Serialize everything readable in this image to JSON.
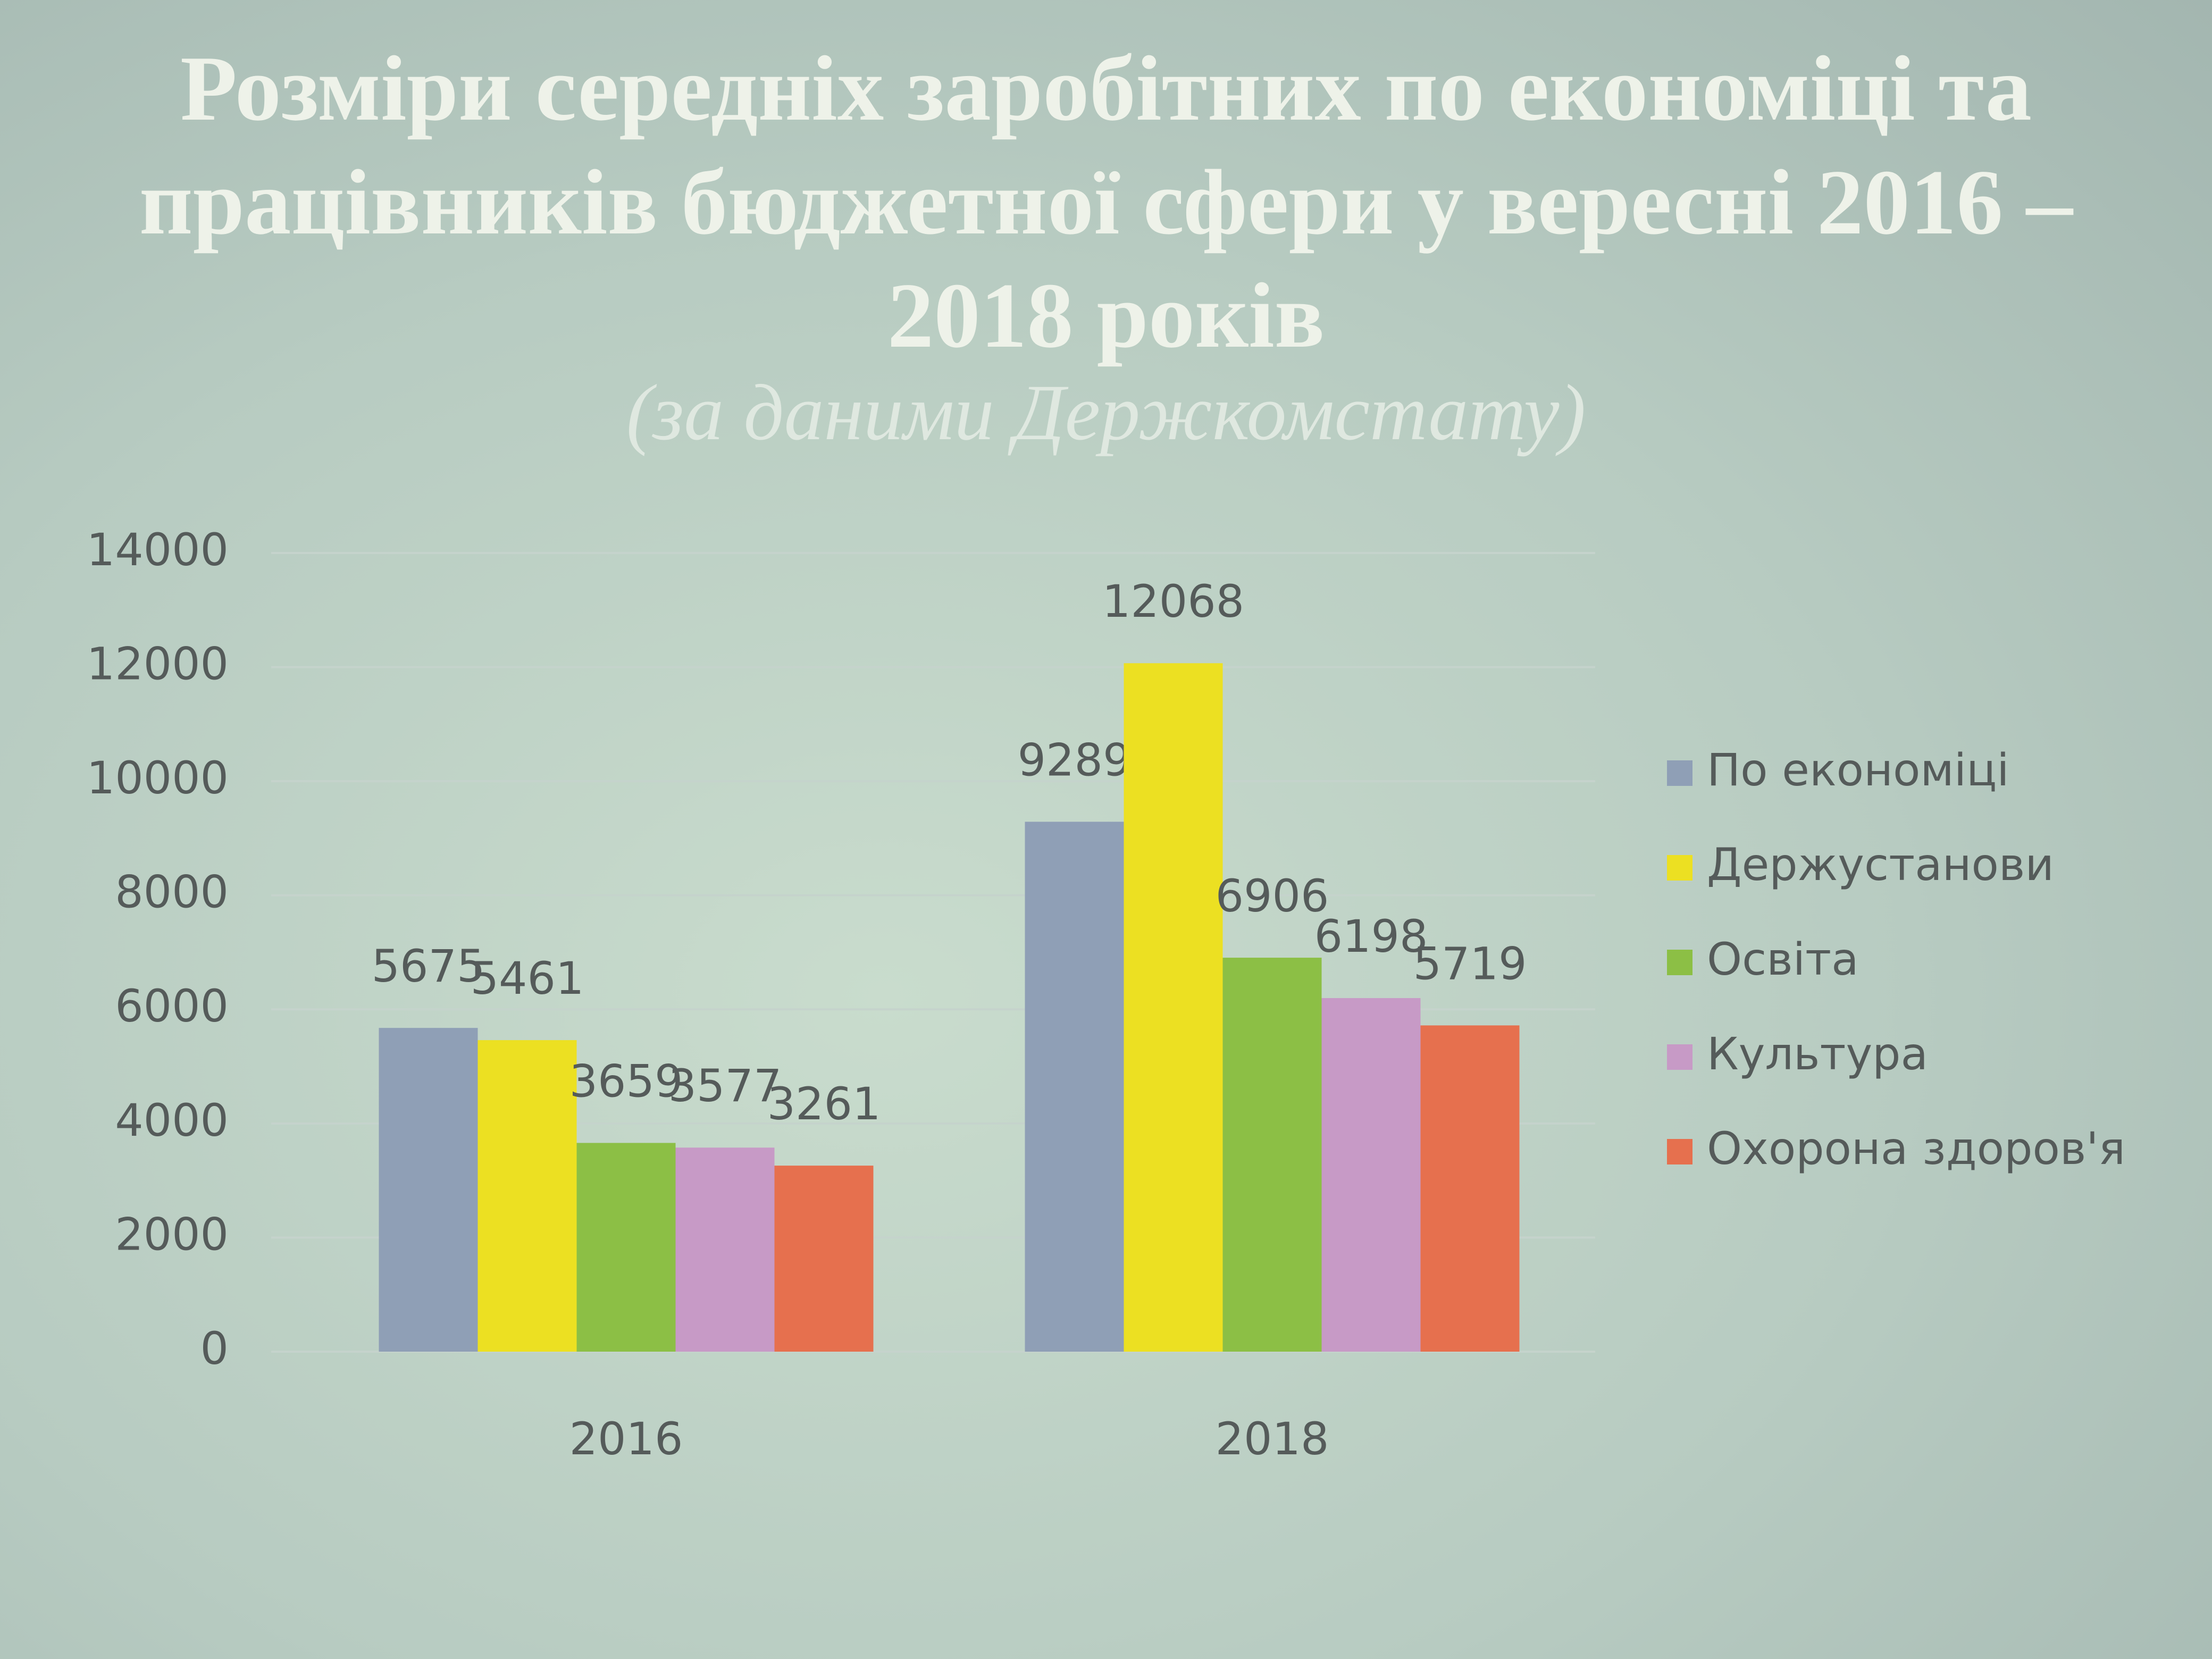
{
  "chart_data": {
    "type": "bar",
    "title": "Розміри середніх заробітних  по економіці та працівників бюджетної сфери у вересні 2016 – 2018 років",
    "subtitle": "(за даними Держкомстату)",
    "categories": [
      "2016",
      "2018"
    ],
    "series": [
      {
        "name": "По економіці",
        "color": "#8f9fb6",
        "values": [
          5675,
          9289
        ]
      },
      {
        "name": "Держустанови",
        "color": "#ece022",
        "values": [
          5461,
          12068
        ]
      },
      {
        "name": "Освіта",
        "color": "#8cbf45",
        "values": [
          3659,
          6906
        ]
      },
      {
        "name": "Культура",
        "color": "#c79ac6",
        "values": [
          3577,
          6198
        ]
      },
      {
        "name": "Охорона здоров'я",
        "color": "#e6704e",
        "values": [
          3261,
          5719
        ]
      }
    ],
    "ylim": [
      0,
      14000
    ],
    "yticks": [
      0,
      2000,
      4000,
      6000,
      8000,
      10000,
      12000,
      14000
    ],
    "grid": true,
    "legend": "right"
  }
}
